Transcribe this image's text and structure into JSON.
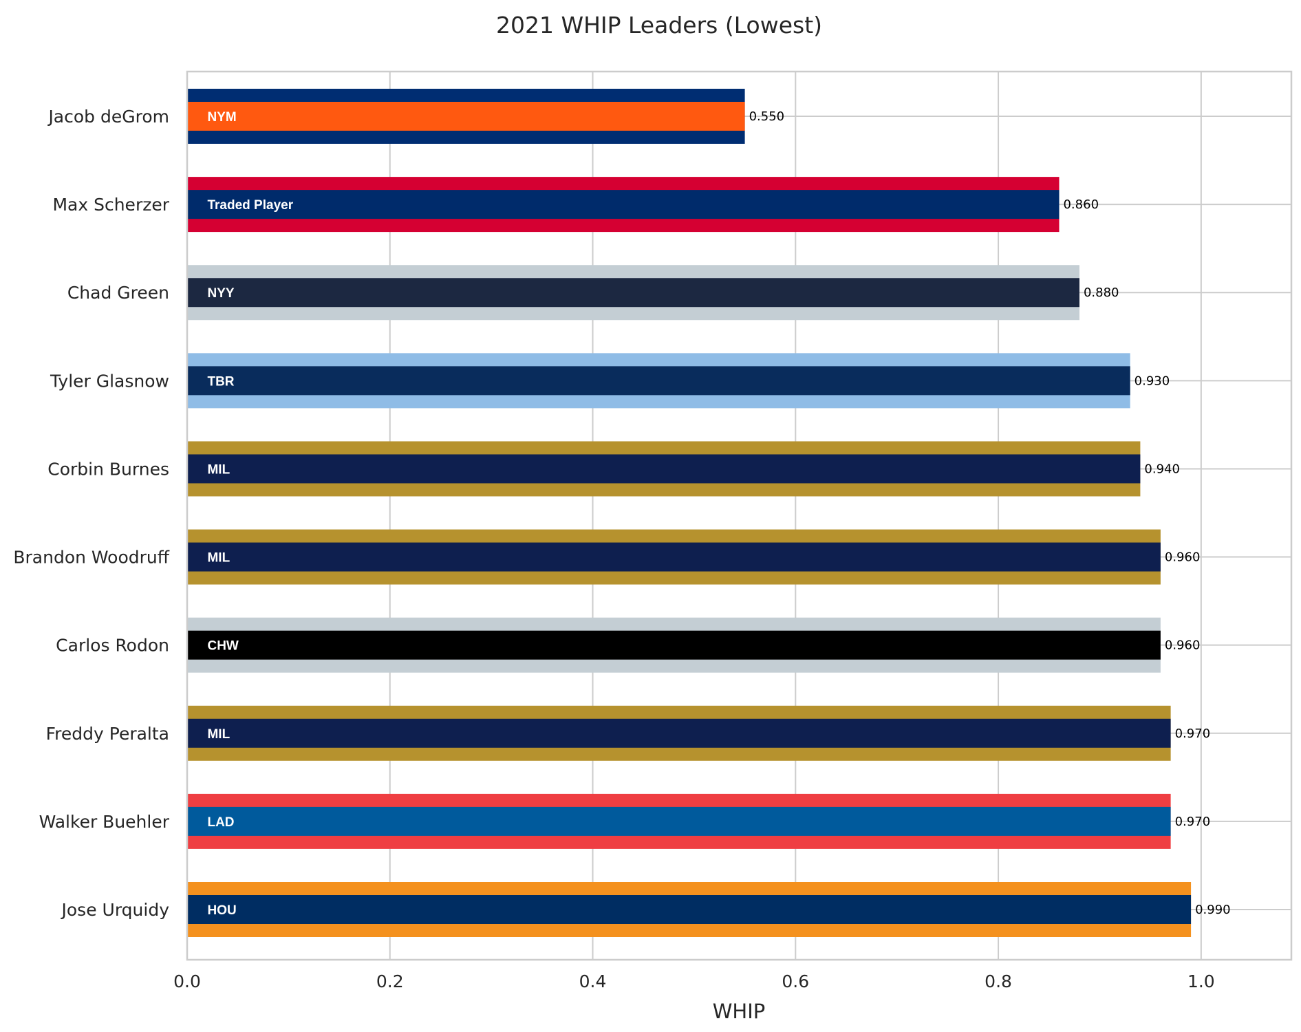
{
  "chart_data": {
    "type": "bar",
    "orientation": "horizontal",
    "title": "2021 WHIP Leaders (Lowest)",
    "xlabel": "WHIP",
    "ylabel": "",
    "xlim": [
      0,
      1.089
    ],
    "xticks": [
      "0.0",
      "0.2",
      "0.4",
      "0.6",
      "0.8",
      "1.0"
    ],
    "grid": true,
    "categories": [
      "Jacob deGrom",
      "Max Scherzer",
      "Chad Green",
      "Tyler Glasnow",
      "Corbin Burnes",
      "Brandon Woodruff",
      "Carlos Rodon",
      "Freddy Peralta",
      "Walker Buehler",
      "Jose Urquidy"
    ],
    "values": [
      0.55,
      0.86,
      0.88,
      0.93,
      0.94,
      0.96,
      0.96,
      0.97,
      0.97,
      0.99
    ],
    "value_labels": [
      "0.550",
      "0.860",
      "0.880",
      "0.930",
      "0.940",
      "0.960",
      "0.960",
      "0.970",
      "0.970",
      "0.990"
    ],
    "teams": [
      "NYM",
      "Traded Player",
      "NYY",
      "TBR",
      "MIL",
      "MIL",
      "CHW",
      "MIL",
      "LAD",
      "HOU"
    ],
    "outer_colors": [
      "#002D72",
      "#D50032",
      "#C4CED4",
      "#8FBCE6",
      "#B6922E",
      "#B6922E",
      "#C4CED4",
      "#B6922E",
      "#EF3E42",
      "#F4911E"
    ],
    "inner_colors": [
      "#FF5910",
      "#002B6B",
      "#1C2841",
      "#092C5C",
      "#0E1F4F",
      "#0E1F4F",
      "#000000",
      "#0E1F4F",
      "#005A9C",
      "#002D62"
    ]
  }
}
